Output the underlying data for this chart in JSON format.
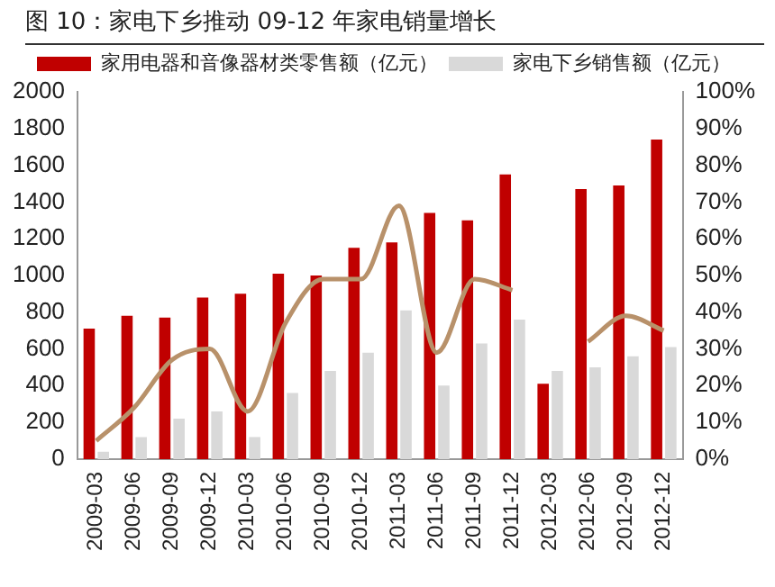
{
  "chart_data": {
    "type": "bar",
    "title": "图 10：家电下乡推动 09-12 年家电销量增长",
    "categories": [
      "2009-03",
      "2009-06",
      "2009-09",
      "2009-12",
      "2010-03",
      "2010-06",
      "2010-09",
      "2010-12",
      "2011-03",
      "2011-06",
      "2011-09",
      "2011-12",
      "2012-03",
      "2012-06",
      "2012-09",
      "2012-12"
    ],
    "series": [
      {
        "name": "家用电器和音像器材类零售额（亿元）",
        "color": "#c00000",
        "values": [
          710,
          780,
          770,
          880,
          900,
          1010,
          1000,
          1150,
          1180,
          1340,
          1300,
          1550,
          410,
          1470,
          1490,
          1740
        ]
      },
      {
        "name": "家电下乡销售额（亿元）",
        "color": "#d9d9d9",
        "values": [
          40,
          120,
          220,
          260,
          120,
          360,
          480,
          580,
          810,
          400,
          630,
          760,
          480,
          500,
          560,
          610
        ]
      },
      {
        "type": "line",
        "axis": "y2",
        "color": "#b8916a",
        "values": [
          5,
          14,
          27,
          30,
          13,
          37,
          49,
          49,
          69,
          29,
          49,
          46,
          null,
          32,
          39,
          35
        ]
      }
    ],
    "ylim": [
      0,
      2000
    ],
    "yticks": [
      0,
      200,
      400,
      600,
      800,
      1000,
      1200,
      1400,
      1600,
      1800,
      2000
    ],
    "y2lim": [
      0,
      100
    ],
    "y2ticks": [
      {
        "value": 0,
        "label": "0%"
      },
      {
        "value": 10,
        "label": "10%"
      },
      {
        "value": 20,
        "label": "20%"
      },
      {
        "value": 30,
        "label": "30%"
      },
      {
        "value": 40,
        "label": "40%"
      },
      {
        "value": 50,
        "label": "50%"
      },
      {
        "value": 60,
        "label": "60%"
      },
      {
        "value": 70,
        "label": "70%"
      },
      {
        "value": 80,
        "label": "80%"
      },
      {
        "value": 90,
        "label": "90%"
      },
      {
        "value": 100,
        "label": "100%"
      }
    ],
    "grid": false,
    "legend": "top",
    "marker": "none",
    "line_style": "solid"
  }
}
